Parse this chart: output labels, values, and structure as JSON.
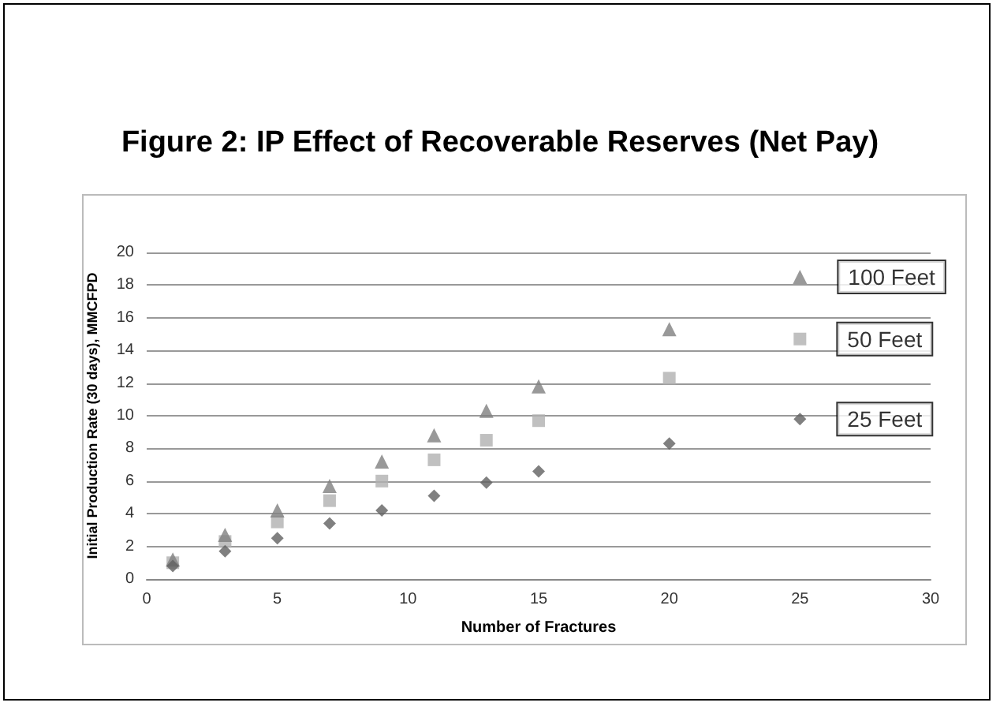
{
  "chart_data": {
    "type": "scatter",
    "title": "Figure 2: IP Effect of Recoverable Reserves (Net Pay)",
    "xlabel": "Number of Fractures",
    "ylabel": "Initial Production Rate (30 days), MMCFPD",
    "x": [
      1,
      3,
      5,
      7,
      9,
      11,
      13,
      15,
      20,
      25
    ],
    "series": [
      {
        "name": "100 Feet",
        "color": "#7f7f7f",
        "marker": "triangle",
        "values": [
          1.2,
          2.7,
          4.2,
          5.7,
          7.2,
          8.8,
          10.3,
          11.8,
          15.3,
          18.5
        ]
      },
      {
        "name": "50 Feet",
        "color": "#b0b0b0",
        "marker": "square",
        "values": [
          1.0,
          2.3,
          3.5,
          4.8,
          6.0,
          7.3,
          8.5,
          9.7,
          12.3,
          14.7
        ]
      },
      {
        "name": "25 Feet",
        "color": "#606060",
        "marker": "diamond",
        "values": [
          0.8,
          1.7,
          2.5,
          3.4,
          4.2,
          5.1,
          5.9,
          6.6,
          8.3,
          9.8
        ]
      }
    ],
    "xlim": [
      0,
      30
    ],
    "xticks": [
      0,
      5,
      10,
      15,
      20,
      25,
      30
    ],
    "ylim": [
      0,
      20
    ],
    "yticks": [
      0,
      2,
      4,
      6,
      8,
      10,
      12,
      14,
      16,
      18,
      20
    ],
    "grid": "y",
    "legend": false
  }
}
